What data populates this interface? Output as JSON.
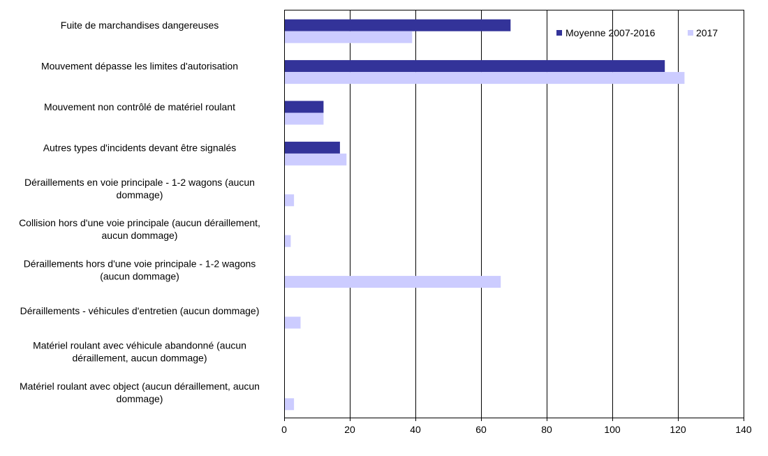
{
  "chart_data": {
    "type": "bar",
    "orientation": "horizontal",
    "categories": [
      "Fuite de marchandises dangereuses",
      "Mouvement dépasse les limites d'autorisation",
      "Mouvement non contrôlé de matériel roulant",
      "Autres types d'incidents devant être signalés",
      "Déraillements en voie principale - 1-2 wagons (aucun dommage)",
      "Collision hors d'une voie principale (aucun déraillement, aucun dommage)",
      "Déraillements hors d'une voie principale - 1-2 wagons (aucun dommage)",
      "Déraillements - véhicules d'entretien (aucun dommage)",
      "Matériel roulant avec véhicule abandonné (aucun déraillement, aucun dommage)",
      "Matériel roulant avec object (aucun déraillement, aucun dommage)"
    ],
    "category_lines": [
      [
        "Fuite de marchandises dangereuses"
      ],
      [
        "Mouvement dépasse les limites d'autorisation"
      ],
      [
        "Mouvement non contrôlé de matériel roulant"
      ],
      [
        "Autres types d'incidents devant être signalés"
      ],
      [
        "Déraillements en voie principale - 1-2 wagons (aucun",
        "dommage)"
      ],
      [
        "Collision hors d'une voie principale (aucun déraillement,",
        "aucun dommage)"
      ],
      [
        "Déraillements hors d'une voie principale - 1-2 wagons",
        "(aucun dommage)"
      ],
      [
        "Déraillements - véhicules d'entretien (aucun dommage)"
      ],
      [
        "Matériel roulant avec véhicule abandonné (aucun",
        "déraillement, aucun dommage)"
      ],
      [
        "Matériel roulant avec object (aucun déraillement, aucun",
        "dommage)"
      ]
    ],
    "series": [
      {
        "name": "Moyenne 2007-2016",
        "color": "#333399",
        "values": [
          69,
          116,
          12,
          17,
          0,
          0,
          0,
          0,
          0,
          0
        ]
      },
      {
        "name": "2017",
        "color": "#ccccff",
        "values": [
          39,
          122,
          12,
          19,
          3,
          2,
          66,
          5,
          0,
          3
        ]
      }
    ],
    "xlim": [
      0,
      140
    ],
    "xticks": [
      0,
      20,
      40,
      60,
      80,
      100,
      120,
      140
    ],
    "grid": true,
    "legend_position": "top-right",
    "title": "",
    "xlabel": "",
    "ylabel": ""
  }
}
